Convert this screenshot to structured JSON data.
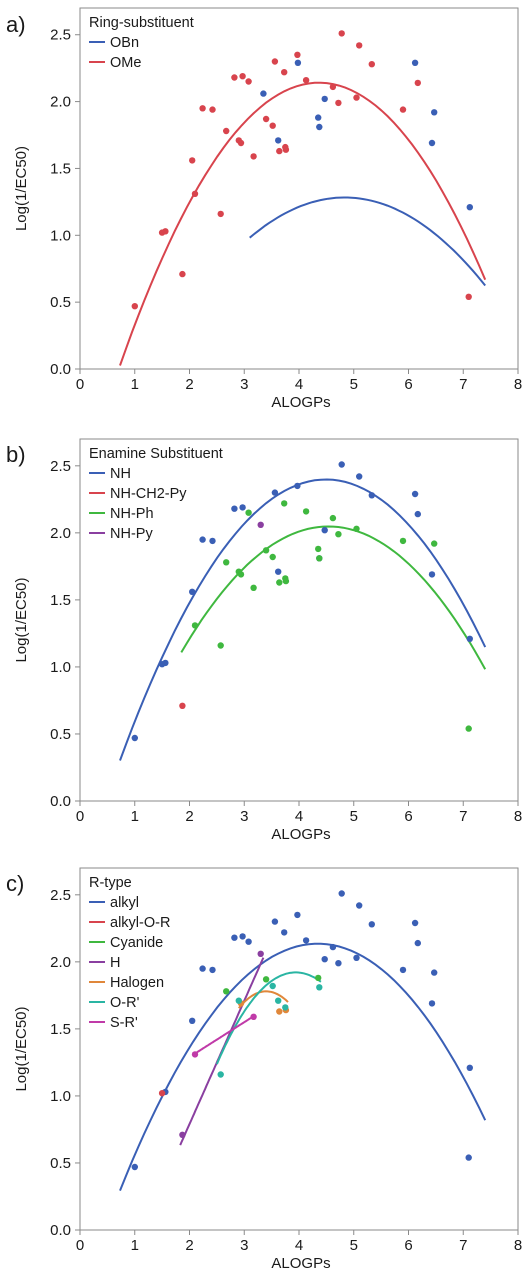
{
  "chart_data": [
    {
      "panel_label": "a)",
      "type": "scatter",
      "xlabel": "ALOGPs",
      "ylabel": "Log(1/EC50)",
      "xlim": [
        0,
        8
      ],
      "ylim": [
        0.0,
        2.7
      ],
      "xticks": [
        "0",
        "1",
        "2",
        "3",
        "4",
        "5",
        "6",
        "7",
        "8"
      ],
      "yticks": [
        "0.0",
        "0.5",
        "1.0",
        "1.5",
        "2.0",
        "2.5"
      ],
      "legend": {
        "title": "Ring-substituent",
        "placement": "top-left"
      },
      "series": [
        {
          "name": "OBn",
          "color": "#3a5fb5",
          "points": [
            [
              3.35,
              2.06
            ],
            [
              3.62,
              1.71
            ],
            [
              4.35,
              1.88
            ],
            [
              4.37,
              1.81
            ],
            [
              4.47,
              2.02
            ],
            [
              6.12,
              2.29
            ],
            [
              6.47,
              1.92
            ],
            [
              6.43,
              1.69
            ],
            [
              7.12,
              1.21
            ],
            [
              3.98,
              2.29
            ]
          ],
          "fit": {
            "x": [
              3.1,
              7.4
            ],
            "coef": [
              -1.055,
              0.967,
              -0.1
            ]
          }
        },
        {
          "name": "OMe",
          "color": "#d8444d",
          "points": [
            [
              1.0,
              0.47
            ],
            [
              1.5,
              1.02
            ],
            [
              1.56,
              1.03
            ],
            [
              1.87,
              0.71
            ],
            [
              2.05,
              1.56
            ],
            [
              2.1,
              1.31
            ],
            [
              2.24,
              1.95
            ],
            [
              2.42,
              1.94
            ],
            [
              2.57,
              1.16
            ],
            [
              2.67,
              1.78
            ],
            [
              2.82,
              2.18
            ],
            [
              2.9,
              1.71
            ],
            [
              2.94,
              1.69
            ],
            [
              2.97,
              2.19
            ],
            [
              3.08,
              2.15
            ],
            [
              3.17,
              1.59
            ],
            [
              3.4,
              1.87
            ],
            [
              3.52,
              1.82
            ],
            [
              3.56,
              2.3
            ],
            [
              3.64,
              1.63
            ],
            [
              3.73,
              2.22
            ],
            [
              3.75,
              1.66
            ],
            [
              3.76,
              1.64
            ],
            [
              3.97,
              2.35
            ],
            [
              4.13,
              2.16
            ],
            [
              4.72,
              1.99
            ],
            [
              4.78,
              2.51
            ],
            [
              5.05,
              2.03
            ],
            [
              5.1,
              2.42
            ],
            [
              5.33,
              2.28
            ],
            [
              5.9,
              1.94
            ],
            [
              6.17,
              2.14
            ],
            [
              7.1,
              0.54
            ],
            [
              4.62,
              2.11
            ]
          ],
          "fit": {
            "x": [
              0.73,
              7.4
            ],
            "coef": [
              -0.908,
              1.397,
              -0.16
            ]
          }
        }
      ]
    },
    {
      "panel_label": "b)",
      "type": "scatter",
      "xlabel": "ALOGPs",
      "ylabel": "Log(1/EC50)",
      "xlim": [
        0,
        8
      ],
      "ylim": [
        0.0,
        2.7
      ],
      "xticks": [
        "0",
        "1",
        "2",
        "3",
        "4",
        "5",
        "6",
        "7",
        "8"
      ],
      "yticks": [
        "0.0",
        "0.5",
        "1.0",
        "1.5",
        "2.0",
        "2.5"
      ],
      "legend": {
        "title": "Enamine Substituent",
        "placement": "top-left"
      },
      "series": [
        {
          "name": "NH",
          "color": "#3a5fb5",
          "points": [
            [
              1.0,
              0.47
            ],
            [
              1.5,
              1.02
            ],
            [
              1.56,
              1.03
            ],
            [
              2.05,
              1.56
            ],
            [
              2.24,
              1.95
            ],
            [
              2.42,
              1.94
            ],
            [
              2.82,
              2.18
            ],
            [
              2.97,
              2.19
            ],
            [
              3.56,
              2.3
            ],
            [
              3.97,
              2.35
            ],
            [
              4.47,
              2.02
            ],
            [
              4.78,
              2.51
            ],
            [
              5.1,
              2.42
            ],
            [
              5.33,
              2.28
            ],
            [
              6.12,
              2.29
            ],
            [
              6.17,
              2.14
            ],
            [
              6.43,
              1.69
            ],
            [
              7.12,
              1.21
            ],
            [
              3.62,
              1.71
            ],
            [
              4.37,
              1.81
            ]
          ],
          "fit": {
            "x": [
              0.73,
              7.4
            ],
            "coef": [
              -0.59,
              1.33,
              -0.148
            ]
          }
        },
        {
          "name": "NH-CH2-Py",
          "color": "#d8444d",
          "points": [
            [
              1.87,
              0.71
            ]
          ],
          "fit": null
        },
        {
          "name": "NH-Ph",
          "color": "#3fb83f",
          "points": [
            [
              2.1,
              1.31
            ],
            [
              2.57,
              1.16
            ],
            [
              2.67,
              1.78
            ],
            [
              2.9,
              1.71
            ],
            [
              2.94,
              1.69
            ],
            [
              3.08,
              2.15
            ],
            [
              3.17,
              1.59
            ],
            [
              3.4,
              1.87
            ],
            [
              3.52,
              1.82
            ],
            [
              3.64,
              1.63
            ],
            [
              3.73,
              2.22
            ],
            [
              3.75,
              1.66
            ],
            [
              3.76,
              1.64
            ],
            [
              4.13,
              2.16
            ],
            [
              4.35,
              1.88
            ],
            [
              4.37,
              1.81
            ],
            [
              4.62,
              2.11
            ],
            [
              4.72,
              1.99
            ],
            [
              5.05,
              2.03
            ],
            [
              5.9,
              1.94
            ],
            [
              6.47,
              1.92
            ],
            [
              7.1,
              0.54
            ]
          ],
          "fit": {
            "x": [
              1.85,
              7.4
            ],
            "coef": [
              -0.63,
              1.18,
              -0.13
            ]
          }
        },
        {
          "name": "NH-Py",
          "color": "#8a3fa0",
          "points": [
            [
              3.3,
              2.06
            ]
          ],
          "fit": null
        }
      ]
    },
    {
      "panel_label": "c)",
      "type": "scatter",
      "xlabel": "ALOGPs",
      "ylabel": "Log(1/EC50)",
      "xlim": [
        0,
        8
      ],
      "ylim": [
        0.0,
        2.7
      ],
      "xticks": [
        "0",
        "1",
        "2",
        "3",
        "4",
        "5",
        "6",
        "7",
        "8"
      ],
      "yticks": [
        "0.0",
        "0.5",
        "1.0",
        "1.5",
        "2.0",
        "2.5"
      ],
      "legend": {
        "title": "R-type",
        "placement": "top-left"
      },
      "series": [
        {
          "name": "alkyl",
          "color": "#3a5fb5",
          "points": [
            [
              1.0,
              0.47
            ],
            [
              1.56,
              1.03
            ],
            [
              2.05,
              1.56
            ],
            [
              2.24,
              1.95
            ],
            [
              2.42,
              1.94
            ],
            [
              2.82,
              2.18
            ],
            [
              2.97,
              2.19
            ],
            [
              3.08,
              2.15
            ],
            [
              3.56,
              2.3
            ],
            [
              3.73,
              2.22
            ],
            [
              3.97,
              2.35
            ],
            [
              4.13,
              2.16
            ],
            [
              4.47,
              2.02
            ],
            [
              4.62,
              2.11
            ],
            [
              4.72,
              1.99
            ],
            [
              4.78,
              2.51
            ],
            [
              5.05,
              2.03
            ],
            [
              5.1,
              2.42
            ],
            [
              5.33,
              2.28
            ],
            [
              5.9,
              1.94
            ],
            [
              6.12,
              2.29
            ],
            [
              6.17,
              2.14
            ],
            [
              6.43,
              1.69
            ],
            [
              6.47,
              1.92
            ],
            [
              7.1,
              0.54
            ],
            [
              7.12,
              1.21
            ]
          ],
          "fit": {
            "x": [
              0.73,
              7.4
            ],
            "coef": [
              -0.525,
              1.225,
              -0.141
            ]
          }
        },
        {
          "name": "alkyl-O-R",
          "color": "#d8444d",
          "points": [
            [
              1.5,
              1.02
            ]
          ],
          "fit": null
        },
        {
          "name": "Cyanide",
          "color": "#3fb83f",
          "points": [
            [
              2.67,
              1.78
            ],
            [
              3.4,
              1.87
            ],
            [
              4.35,
              1.88
            ]
          ],
          "fit": null
        },
        {
          "name": "H",
          "color": "#8a3fa0",
          "points": [
            [
              1.87,
              0.71
            ],
            [
              3.3,
              2.06
            ]
          ],
          "fit": {
            "x": [
              1.83,
              3.35
            ],
            "coef": [
              -1.05,
              0.92,
              0
            ]
          }
        },
        {
          "name": "Halogen",
          "color": "#e0873a",
          "points": [
            [
              2.94,
              1.69
            ],
            [
              3.64,
              1.63
            ],
            [
              3.76,
              1.64
            ]
          ],
          "fit": {
            "x": [
              2.9,
              3.8
            ],
            "coef": [
              -4.0,
              3.4,
              -0.5
            ]
          }
        },
        {
          "name": "O-R'",
          "color": "#2ab5a3",
          "points": [
            [
              2.57,
              1.16
            ],
            [
              2.9,
              1.71
            ],
            [
              3.52,
              1.82
            ],
            [
              3.62,
              1.71
            ],
            [
              3.75,
              1.66
            ],
            [
              4.37,
              1.81
            ]
          ],
          "fit": {
            "x": [
              2.5,
              4.4
            ],
            "coef": [
              -3.2,
              2.6,
              -0.33
            ]
          }
        },
        {
          "name": "S-R'",
          "color": "#c03aa8",
          "points": [
            [
              2.1,
              1.31
            ],
            [
              3.17,
              1.59
            ]
          ],
          "fit": {
            "x": [
              2.1,
              3.2
            ],
            "coef": [
              0.77,
              0.26,
              0
            ]
          }
        }
      ]
    }
  ]
}
